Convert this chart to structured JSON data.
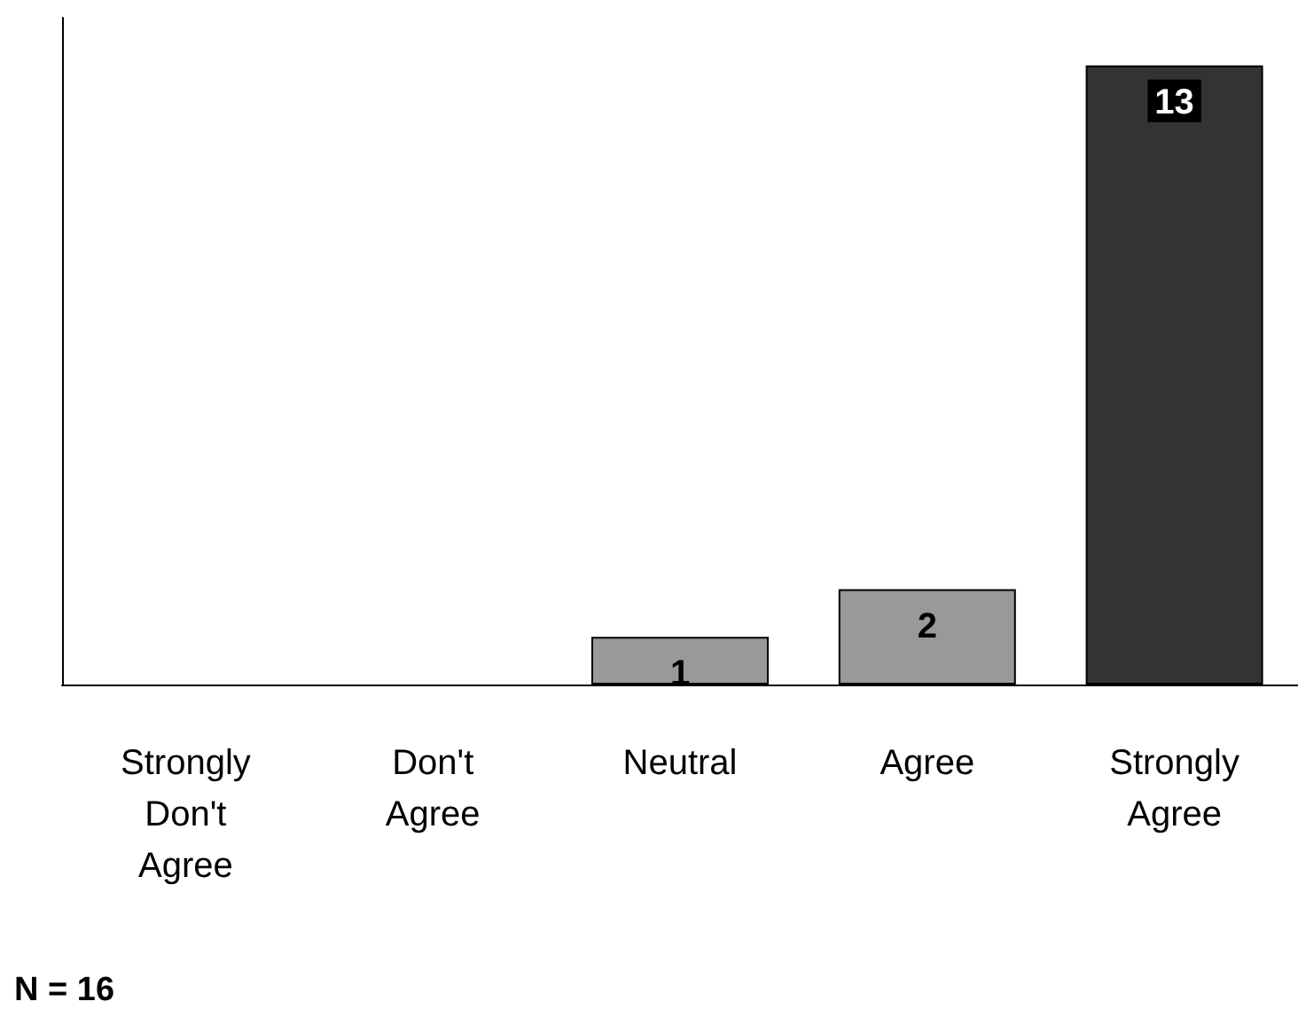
{
  "chart_data": {
    "type": "bar",
    "categories": [
      "Strongly Don't Agree",
      "Don't Agree",
      "Neutral",
      "Agree",
      "Strongly Agree"
    ],
    "values": [
      0,
      0,
      1,
      2,
      13
    ],
    "value_labels": [
      null,
      null,
      "1",
      "2",
      "13"
    ],
    "colors": [
      "#999999",
      "#999999",
      "#999999",
      "#999999",
      "#333333"
    ],
    "ylim": [
      0,
      14
    ],
    "tick_labels": "x",
    "grid": false,
    "annotations": [
      "N = 16"
    ]
  }
}
